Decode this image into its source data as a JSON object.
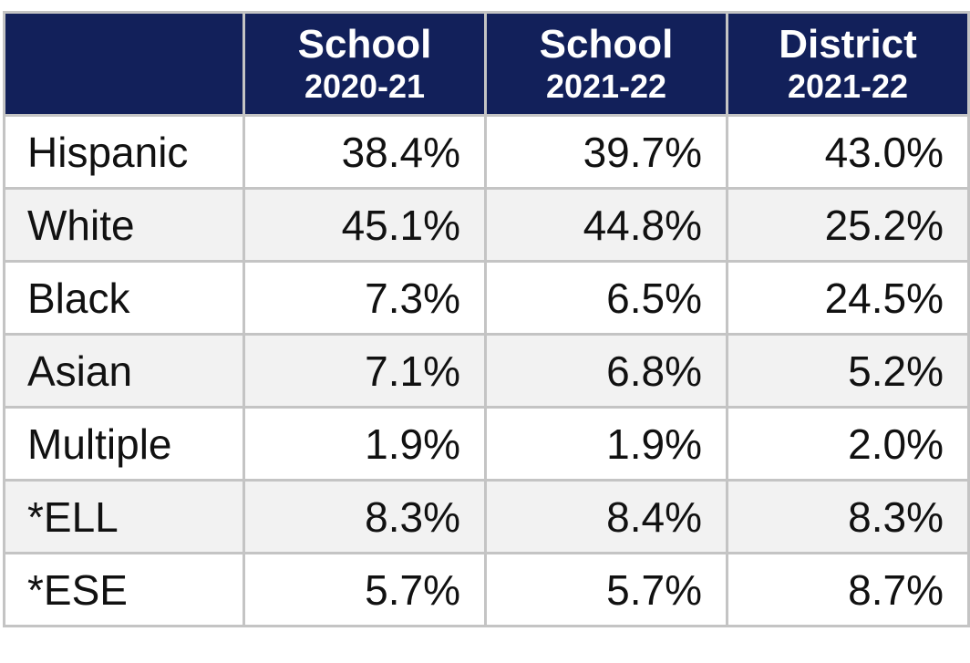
{
  "table": {
    "columns": [
      {
        "title": "School",
        "period": "2020-21"
      },
      {
        "title": "School",
        "period": "2021-22"
      },
      {
        "title": "District",
        "period": "2021-22"
      }
    ],
    "rows": [
      [
        "Hispanic",
        "38.4%",
        "39.7%",
        "43.0%"
      ],
      [
        "White",
        "45.1%",
        "44.8%",
        "25.2%"
      ],
      [
        "Black",
        "7.3%",
        "6.5%",
        "24.5%"
      ],
      [
        "Asian",
        "7.1%",
        "6.8%",
        "5.2%"
      ],
      [
        "Multiple",
        "1.9%",
        "1.9%",
        "2.0%"
      ],
      [
        "*ELL",
        "8.3%",
        "8.4%",
        "8.3%"
      ],
      [
        "*ESE",
        "5.7%",
        "5.7%",
        "8.7%"
      ]
    ]
  }
}
